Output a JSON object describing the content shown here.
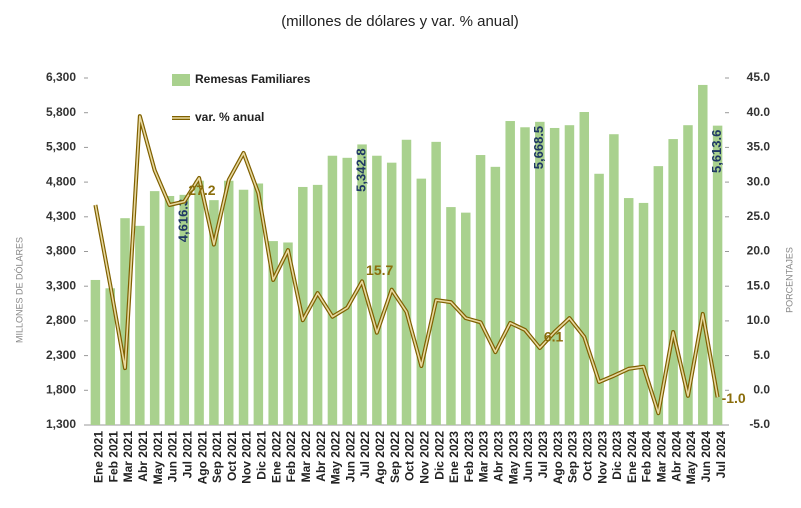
{
  "chart_data": {
    "type": "bar-line",
    "title": "(millones de dólares y var. % anual)",
    "ylabel": "MILLONES DE DÓLARES",
    "y2label": "PORCENTAJES",
    "categories": [
      "Ene 2021",
      "Feb 2021",
      "Mar 2021",
      "Abr 2021",
      "May 2021",
      "Jun 2021",
      "Jul 2021",
      "Ago 2021",
      "Sep 2021",
      "Oct 2021",
      "Nov 2021",
      "Dic 2021",
      "Ene 2022",
      "Feb 2022",
      "Mar 2022",
      "Abr 2022",
      "May 2022",
      "Jun 2022",
      "Jul 2022",
      "Ago 2022",
      "Sep 2022",
      "Oct 2022",
      "Nov 2022",
      "Dic 2022",
      "Ene 2023",
      "Feb 2023",
      "Mar 2023",
      "Abr 2023",
      "May 2023",
      "Jun 2023",
      "Jul 2023",
      "Ago 2023",
      "Sep 2023",
      "Oct 2023",
      "Nov 2023",
      "Dic 2023",
      "Ene 2024",
      "Feb 2024",
      "Mar 2024",
      "Abr 2024",
      "May 2024",
      "Jun 2024",
      "Jul 2024"
    ],
    "series": [
      {
        "name": "Remesas Familiares",
        "type": "bar",
        "color": "#a9d18e",
        "label_color": "#1f3864",
        "values": [
          3390,
          3270,
          4280,
          4170,
          4670,
          4600,
          4616.3,
          4820,
          4540,
          4820,
          4690,
          4780,
          3950,
          3930,
          4730,
          4760,
          5180,
          5150,
          5342.8,
          5180,
          5080,
          5410,
          4850,
          5380,
          4440,
          4360,
          5190,
          5020,
          5680,
          5590,
          5668.5,
          5580,
          5620,
          5810,
          4920,
          5490,
          4570,
          4500,
          5030,
          5420,
          5620,
          6200,
          5613.6
        ],
        "value_labels": [
          null,
          null,
          null,
          null,
          null,
          null,
          "4,616.3",
          null,
          null,
          null,
          null,
          null,
          null,
          null,
          null,
          null,
          null,
          null,
          "5,342.8",
          null,
          null,
          null,
          null,
          null,
          null,
          null,
          null,
          null,
          null,
          null,
          "5,668.5",
          null,
          null,
          null,
          null,
          null,
          null,
          null,
          null,
          null,
          null,
          null,
          "5,613.6"
        ]
      },
      {
        "name": "var. % anual",
        "type": "line",
        "axis": "y2",
        "color": "#7f6000",
        "inner_color": "#e8d9a0",
        "label_color": "#8a6d0b",
        "values": [
          26.7,
          15.2,
          3.2,
          39.5,
          31.7,
          26.7,
          27.2,
          30.6,
          21,
          30.3,
          34.2,
          28.4,
          15.9,
          20.2,
          10.1,
          14,
          10.6,
          11.9,
          15.7,
          8.3,
          14.5,
          11.3,
          3.5,
          13,
          12.7,
          10.4,
          9.8,
          5.5,
          9.7,
          8.7,
          6.1,
          8.4,
          10.4,
          7.7,
          1.2,
          2.1,
          3.1,
          3.4,
          -3.3,
          8.4,
          -0.8,
          11,
          -1.0
        ],
        "value_labels": [
          null,
          null,
          null,
          null,
          null,
          null,
          "27.2",
          null,
          null,
          null,
          null,
          null,
          null,
          null,
          null,
          null,
          null,
          null,
          "15.7",
          null,
          null,
          null,
          null,
          null,
          null,
          null,
          null,
          null,
          null,
          null,
          "6.1",
          null,
          null,
          null,
          null,
          null,
          null,
          null,
          null,
          null,
          null,
          null,
          "-1.0"
        ]
      }
    ],
    "ylim": [
      1300,
      6300
    ],
    "yticks": [
      {
        "value": 1300,
        "label": "1,300"
      },
      {
        "value": 1800,
        "label": "1,800"
      },
      {
        "value": 2300,
        "label": "2,300"
      },
      {
        "value": 2800,
        "label": "2,800"
      },
      {
        "value": 3300,
        "label": "3,300"
      },
      {
        "value": 3800,
        "label": "3,800"
      },
      {
        "value": 4300,
        "label": "4,300"
      },
      {
        "value": 4800,
        "label": "4,800"
      },
      {
        "value": 5300,
        "label": "5,300"
      },
      {
        "value": 5800,
        "label": "5,800"
      },
      {
        "value": 6300,
        "label": "6,300"
      }
    ],
    "y2lim": [
      -5,
      45
    ],
    "y2ticks": [
      {
        "value": -5,
        "label": "-5.0"
      },
      {
        "value": 0,
        "label": "0.0"
      },
      {
        "value": 5,
        "label": "5.0"
      },
      {
        "value": 10,
        "label": "10.0"
      },
      {
        "value": 15,
        "label": "15.0"
      },
      {
        "value": 20,
        "label": "20.0"
      },
      {
        "value": 25,
        "label": "25.0"
      },
      {
        "value": 30,
        "label": "30.0"
      },
      {
        "value": 35,
        "label": "35.0"
      },
      {
        "value": 40,
        "label": "40.0"
      },
      {
        "value": 45,
        "label": "45.0"
      }
    ]
  }
}
